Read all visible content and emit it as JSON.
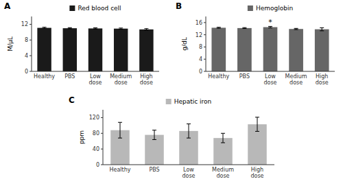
{
  "chart_data": [
    {
      "type": "bar",
      "title": "A",
      "y_label": "M/μL",
      "categories": [
        "Healthy",
        "PBS",
        "Low dose",
        "Medium dose",
        "High dose"
      ],
      "series": [
        {
          "name": "Red blood cell",
          "color": "#1a1a1a",
          "values": [
            11.1,
            11.0,
            10.95,
            10.9,
            10.7
          ],
          "errors": [
            0.15,
            0.15,
            0.15,
            0.15,
            0.2
          ]
        }
      ],
      "ylim": [
        0,
        14
      ],
      "yticks": [
        0,
        4,
        8,
        12
      ],
      "grid": false,
      "legend": "top"
    },
    {
      "type": "bar",
      "title": "B",
      "y_label": "g/dL",
      "categories": [
        "Healthy",
        "PBS",
        "Low dose",
        "Medium dose",
        "High dose"
      ],
      "series": [
        {
          "name": "Hemoglobin",
          "color": "#666666",
          "values": [
            14.3,
            14.2,
            14.5,
            13.9,
            13.8
          ],
          "errors": [
            0.15,
            0.15,
            0.25,
            0.2,
            0.5
          ]
        }
      ],
      "ylim": [
        0,
        18
      ],
      "yticks": [
        0,
        4,
        8,
        12,
        16
      ],
      "grid": false,
      "legend": "top",
      "annotations": [
        {
          "text": "*",
          "x": "Low dose"
        }
      ]
    },
    {
      "type": "bar",
      "title": "C",
      "y_label": "ppm",
      "categories": [
        "Healthy",
        "PBS",
        "Low dose",
        "Medium dose",
        "High dose"
      ],
      "series": [
        {
          "name": "Hepatic iron",
          "color": "#b8b8b8",
          "values": [
            88,
            76,
            86,
            68,
            103
          ],
          "errors": [
            20,
            12,
            18,
            12,
            18
          ]
        }
      ],
      "ylim": [
        0,
        140
      ],
      "yticks": [
        0,
        40,
        80,
        120
      ],
      "grid": false,
      "legend": "top"
    }
  ]
}
